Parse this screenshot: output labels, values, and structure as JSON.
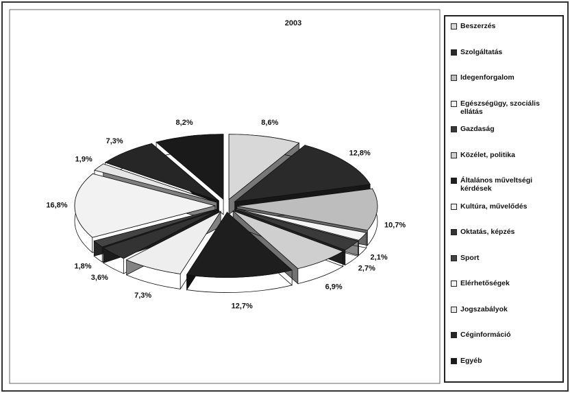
{
  "chart_data": {
    "type": "pie",
    "title": "2003",
    "categories": [
      "Beszerzés",
      "Szolgáltatás",
      "Idegenforgalom",
      "Egészségügy, szociális ellátás",
      "Gazdaság",
      "Közélet, politika",
      "Általános műveltségi kérdések",
      "Kultúra, művelődés",
      "Oktatás, képzés",
      "Sport",
      "Elérhetőségek",
      "Jogszabályok",
      "Céginformáció",
      "Egyéb"
    ],
    "values": [
      8.6,
      12.8,
      10.7,
      2.1,
      2.7,
      6.9,
      12.7,
      7.3,
      3.6,
      1.8,
      16.8,
      1.9,
      7.3,
      8.2
    ],
    "value_labels": [
      "8,6%",
      "12,8%",
      "10,7%",
      "2,1%",
      "2,7%",
      "6,9%",
      "12,7%",
      "7,3%",
      "3,6%",
      "1,8%",
      "16,8%",
      "1,9%",
      "7,3%",
      "8,2%"
    ],
    "colors": [
      "#d8d8d8",
      "#2a2a2a",
      "#bdbdbd",
      "#f4f4f4",
      "#3a3a3a",
      "#cfcfcf",
      "#1e1e1e",
      "#eeeeee",
      "#333333",
      "#444444",
      "#f2f2f2",
      "#e6e6e6",
      "#262626",
      "#1a1a1a"
    ]
  }
}
